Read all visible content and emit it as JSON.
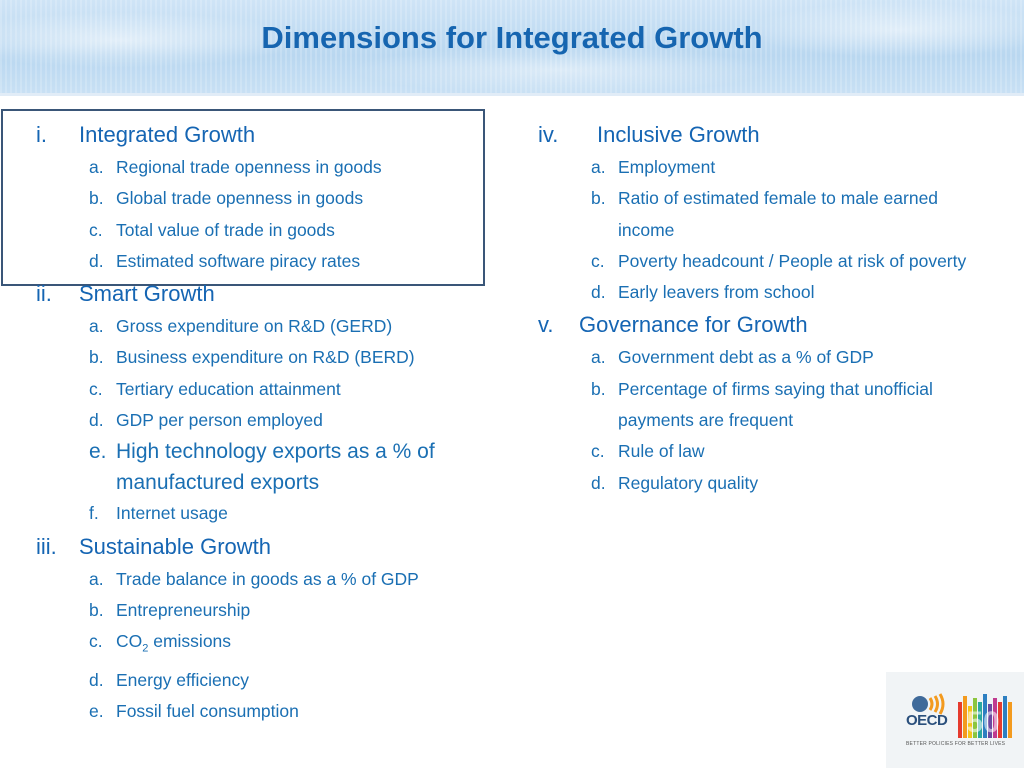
{
  "slide": {
    "title": "Dimensions for Integrated Growth"
  },
  "left_column": {
    "sections": [
      {
        "num": "i.",
        "label": "Integrated Growth",
        "items": [
          {
            "letter": "a.",
            "text": "Regional trade openness in goods"
          },
          {
            "letter": "b.",
            "text": "Global trade openness in goods"
          },
          {
            "letter": "c.",
            "text": "Total value of trade in goods"
          },
          {
            "letter": "d.",
            "text": "Estimated software piracy rates"
          }
        ]
      },
      {
        "num": "ii.",
        "label": "Smart Growth",
        "items": [
          {
            "letter": "a.",
            "text": "Gross expenditure on R&D (GERD)"
          },
          {
            "letter": "b.",
            "text": "Business expenditure on R&D (BERD)"
          },
          {
            "letter": "c.",
            "text": "Tertiary education attainment"
          },
          {
            "letter": "d.",
            "text": "GDP per person employed"
          },
          {
            "letter": "e.",
            "text": "High technology exports as a % of manufactured exports"
          },
          {
            "letter": "f.",
            "text": "Internet usage"
          }
        ]
      },
      {
        "num": "iii.",
        "label": "Sustainable Growth",
        "items": [
          {
            "letter": "a.",
            "text": "Trade balance in goods as a % of GDP"
          },
          {
            "letter": "b.",
            "text": "Entrepreneurship"
          },
          {
            "letter": "c.",
            "text_pre": "CO",
            "text_sub": "2",
            "text_post": " emissions"
          },
          {
            "letter": "d.",
            "text": "Energy efficiency"
          },
          {
            "letter": "e.",
            "text": "Fossil fuel consumption"
          }
        ]
      }
    ]
  },
  "right_column": {
    "sections": [
      {
        "num": "iv.",
        "label": "Inclusive Growth",
        "items": [
          {
            "letter": "a.",
            "text": "Employment"
          },
          {
            "letter": "b.",
            "text": "Ratio of estimated female to male earned income"
          },
          {
            "letter": "c.",
            "text": "Poverty headcount / People at risk of poverty"
          },
          {
            "letter": "d.",
            "text": "Early leavers from school"
          }
        ]
      },
      {
        "num": "v.",
        "label": "Governance for Growth",
        "items": [
          {
            "letter": "a.",
            "text": "Government debt as a % of GDP"
          },
          {
            "letter": "b.",
            "text": "Percentage of firms saying that unofficial payments are frequent"
          },
          {
            "letter": "c.",
            "text": "Rule of law"
          },
          {
            "letter": "d.",
            "text": "Regulatory quality"
          }
        ]
      }
    ]
  },
  "logo": {
    "name": "OECD",
    "number": "50",
    "tagline": "BETTER POLICIES FOR BETTER LIVES"
  }
}
